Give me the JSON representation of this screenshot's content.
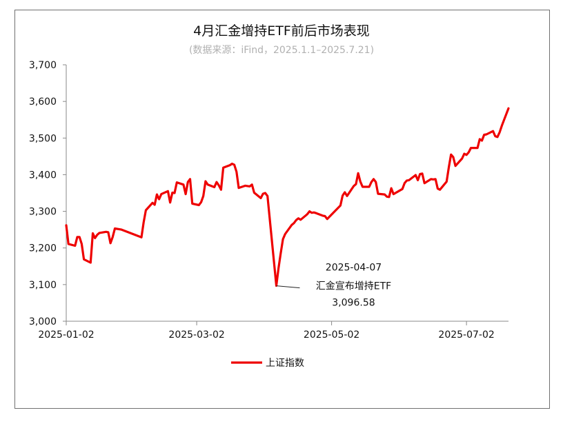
{
  "chart_data": {
    "type": "line",
    "title": "4月汇金增持ETF前后市场表现",
    "subtitle": "(数据来源：iFind，2025.1.1–2025.7.21)",
    "y_ticks": [
      "3,000",
      "3,100",
      "3,200",
      "3,300",
      "3,400",
      "3,500",
      "3,600",
      "3,700"
    ],
    "ylim": [
      3000,
      3700
    ],
    "x_ticks": [
      {
        "label": "2025-01-02",
        "date": "2025-01-02"
      },
      {
        "label": "2025-03-02",
        "date": "2025-03-02"
      },
      {
        "label": "2025-05-02",
        "date": "2025-05-02"
      },
      {
        "label": "2025-07-02",
        "date": "2025-07-02"
      }
    ],
    "xlim": [
      "2025-01-02",
      "2025-07-21"
    ],
    "legend": {
      "placement": "bottom-center",
      "label": "上证指数"
    },
    "line_color": "#ee0000",
    "series": [
      {
        "name": "上证指数",
        "points": [
          [
            "2025-01-02",
            3262
          ],
          [
            "2025-01-03",
            3211
          ],
          [
            "2025-01-06",
            3206
          ],
          [
            "2025-01-07",
            3230
          ],
          [
            "2025-01-08",
            3230
          ],
          [
            "2025-01-09",
            3211
          ],
          [
            "2025-01-10",
            3169
          ],
          [
            "2025-01-13",
            3160
          ],
          [
            "2025-01-14",
            3240
          ],
          [
            "2025-01-15",
            3227
          ],
          [
            "2025-01-16",
            3236
          ],
          [
            "2025-01-17",
            3241
          ],
          [
            "2025-01-20",
            3244
          ],
          [
            "2025-01-21",
            3243
          ],
          [
            "2025-01-22",
            3213
          ],
          [
            "2025-01-23",
            3230
          ],
          [
            "2025-01-24",
            3253
          ],
          [
            "2025-01-27",
            3250
          ],
          [
            "2025-02-05",
            3229
          ],
          [
            "2025-02-06",
            3270
          ],
          [
            "2025-02-07",
            3303
          ],
          [
            "2025-02-10",
            3323
          ],
          [
            "2025-02-11",
            3318
          ],
          [
            "2025-02-12",
            3346
          ],
          [
            "2025-02-13",
            3333
          ],
          [
            "2025-02-14",
            3347
          ],
          [
            "2025-02-17",
            3355
          ],
          [
            "2025-02-18",
            3324
          ],
          [
            "2025-02-19",
            3351
          ],
          [
            "2025-02-20",
            3350
          ],
          [
            "2025-02-21",
            3379
          ],
          [
            "2025-02-24",
            3373
          ],
          [
            "2025-02-25",
            3347
          ],
          [
            "2025-02-26",
            3380
          ],
          [
            "2025-02-27",
            3388
          ],
          [
            "2025-02-28",
            3321
          ],
          [
            "2025-03-03",
            3317
          ],
          [
            "2025-03-04",
            3325
          ],
          [
            "2025-03-05",
            3342
          ],
          [
            "2025-03-06",
            3382
          ],
          [
            "2025-03-07",
            3373
          ],
          [
            "2025-03-10",
            3366
          ],
          [
            "2025-03-11",
            3380
          ],
          [
            "2025-03-12",
            3371
          ],
          [
            "2025-03-13",
            3359
          ],
          [
            "2025-03-14",
            3419
          ],
          [
            "2025-03-17",
            3426
          ],
          [
            "2025-03-18",
            3430
          ],
          [
            "2025-03-19",
            3427
          ],
          [
            "2025-03-20",
            3408
          ],
          [
            "2025-03-21",
            3364
          ],
          [
            "2025-03-24",
            3370
          ],
          [
            "2025-03-25",
            3369
          ],
          [
            "2025-03-26",
            3368
          ],
          [
            "2025-03-27",
            3373
          ],
          [
            "2025-03-28",
            3351
          ],
          [
            "2025-03-31",
            3336
          ],
          [
            "2025-04-01",
            3348
          ],
          [
            "2025-04-02",
            3350
          ],
          [
            "2025-04-03",
            3342
          ],
          [
            "2025-04-07",
            3097
          ],
          [
            "2025-04-08",
            3145
          ],
          [
            "2025-04-09",
            3186
          ],
          [
            "2025-04-10",
            3224
          ],
          [
            "2025-04-11",
            3238
          ],
          [
            "2025-04-14",
            3263
          ],
          [
            "2025-04-15",
            3268
          ],
          [
            "2025-04-16",
            3276
          ],
          [
            "2025-04-17",
            3281
          ],
          [
            "2025-04-18",
            3277
          ],
          [
            "2025-04-21",
            3292
          ],
          [
            "2025-04-22",
            3300
          ],
          [
            "2025-04-23",
            3296
          ],
          [
            "2025-04-24",
            3297
          ],
          [
            "2025-04-25",
            3295
          ],
          [
            "2025-04-28",
            3288
          ],
          [
            "2025-04-29",
            3287
          ],
          [
            "2025-04-30",
            3279
          ],
          [
            "2025-05-06",
            3316
          ],
          [
            "2025-05-07",
            3343
          ],
          [
            "2025-05-08",
            3352
          ],
          [
            "2025-05-09",
            3342
          ],
          [
            "2025-05-12",
            3369
          ],
          [
            "2025-05-13",
            3374
          ],
          [
            "2025-05-14",
            3404
          ],
          [
            "2025-05-15",
            3381
          ],
          [
            "2025-05-16",
            3367
          ],
          [
            "2025-05-19",
            3367
          ],
          [
            "2025-05-20",
            3380
          ],
          [
            "2025-05-21",
            3388
          ],
          [
            "2025-05-22",
            3380
          ],
          [
            "2025-05-23",
            3348
          ],
          [
            "2025-05-26",
            3346
          ],
          [
            "2025-05-27",
            3340
          ],
          [
            "2025-05-28",
            3339
          ],
          [
            "2025-05-29",
            3363
          ],
          [
            "2025-05-30",
            3347
          ],
          [
            "2025-06-03",
            3361
          ],
          [
            "2025-06-04",
            3377
          ],
          [
            "2025-06-05",
            3384
          ],
          [
            "2025-06-06",
            3385
          ],
          [
            "2025-06-09",
            3399
          ],
          [
            "2025-06-10",
            3385
          ],
          [
            "2025-06-11",
            3402
          ],
          [
            "2025-06-12",
            3403
          ],
          [
            "2025-06-13",
            3377
          ],
          [
            "2025-06-16",
            3388
          ],
          [
            "2025-06-17",
            3387
          ],
          [
            "2025-06-18",
            3388
          ],
          [
            "2025-06-19",
            3362
          ],
          [
            "2025-06-20",
            3359
          ],
          [
            "2025-06-23",
            3381
          ],
          [
            "2025-06-24",
            3420
          ],
          [
            "2025-06-25",
            3455
          ],
          [
            "2025-06-26",
            3448
          ],
          [
            "2025-06-27",
            3424
          ],
          [
            "2025-06-30",
            3444
          ],
          [
            "2025-07-01",
            3457
          ],
          [
            "2025-07-02",
            3454
          ],
          [
            "2025-07-03",
            3461
          ],
          [
            "2025-07-04",
            3473
          ],
          [
            "2025-07-07",
            3473
          ],
          [
            "2025-07-08",
            3497
          ],
          [
            "2025-07-09",
            3493
          ],
          [
            "2025-07-10",
            3509
          ],
          [
            "2025-07-11",
            3510
          ],
          [
            "2025-07-14",
            3519
          ],
          [
            "2025-07-15",
            3505
          ],
          [
            "2025-07-16",
            3503
          ],
          [
            "2025-07-17",
            3516
          ],
          [
            "2025-07-18",
            3534
          ],
          [
            "2025-07-21",
            3581
          ]
        ]
      }
    ],
    "annotation": {
      "date": "2025-04-07",
      "value": 3096.58,
      "lines": [
        "2025-04-07",
        "汇金宣布增持ETF",
        "3,096.58"
      ]
    }
  }
}
